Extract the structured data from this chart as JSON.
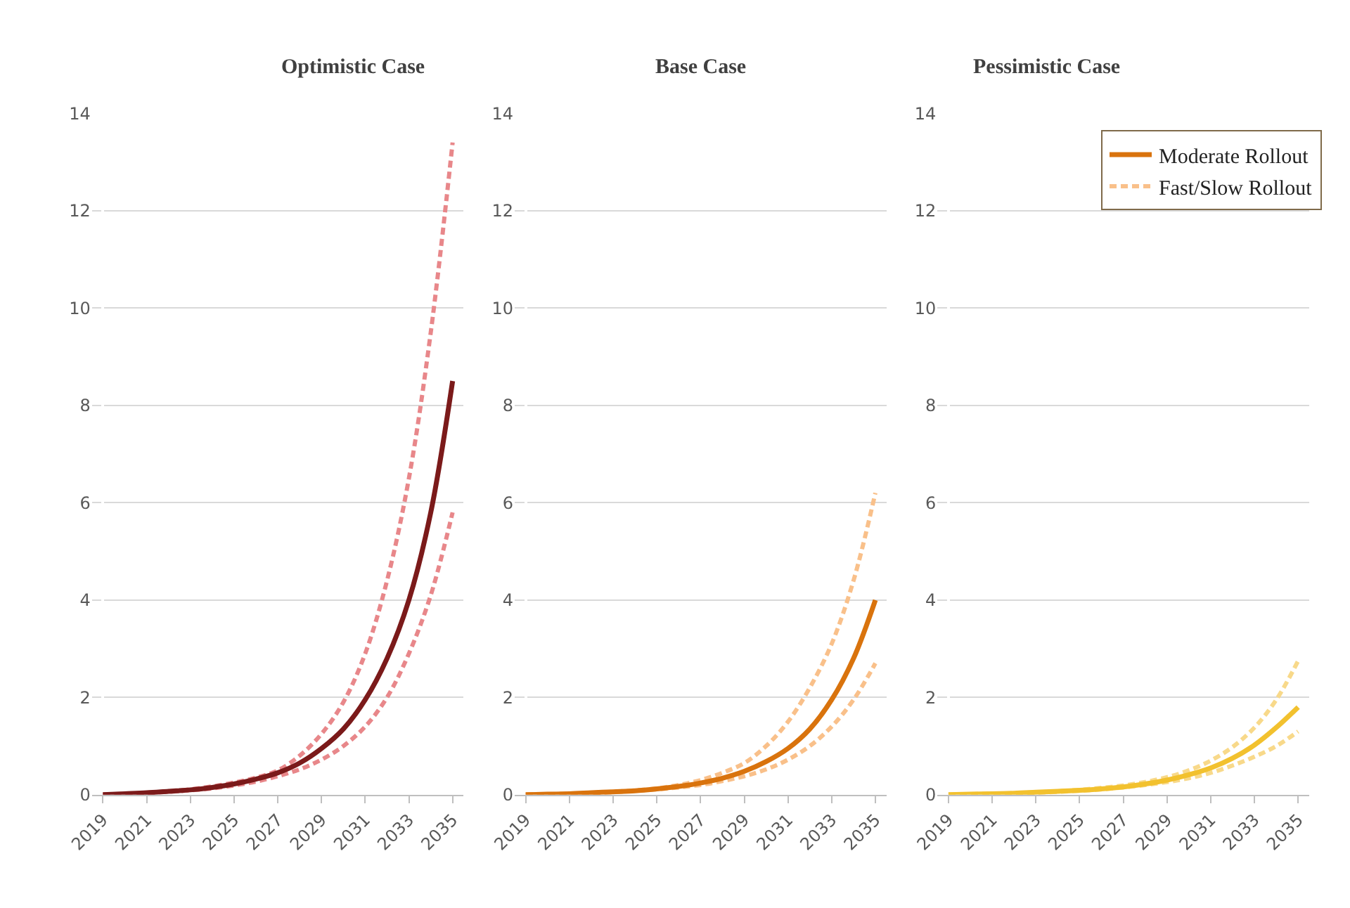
{
  "chart_data": [
    {
      "type": "line",
      "title": "Optimistic Case",
      "categories": [
        "2019",
        null,
        "2021",
        null,
        "2023",
        null,
        "2025",
        null,
        "2027",
        null,
        "2029",
        null,
        "2031",
        null,
        "2033",
        null,
        "2035"
      ],
      "ylim": [
        0,
        14
      ],
      "yticks": [
        0,
        2,
        4,
        6,
        8,
        10,
        12,
        14
      ],
      "grid": "y",
      "legend": false,
      "series": [
        {
          "color": "#e8878a",
          "line_style": "dashed",
          "values": [
            0,
            0.02,
            0.04,
            0.07,
            0.11,
            0.17,
            0.25,
            0.35,
            0.5,
            0.8,
            1.25,
            1.9,
            2.9,
            4.4,
            6.5,
            9.5,
            13.4
          ]
        },
        {
          "color": "#e8878a",
          "line_style": "dashed",
          "values": [
            0,
            0.01,
            0.03,
            0.06,
            0.09,
            0.13,
            0.19,
            0.27,
            0.38,
            0.52,
            0.72,
            1.0,
            1.4,
            2.0,
            2.9,
            4.1,
            5.8
          ]
        },
        {
          "color": "#7b1a1a",
          "line_style": "solid",
          "values": [
            0,
            0.02,
            0.04,
            0.07,
            0.1,
            0.15,
            0.22,
            0.32,
            0.45,
            0.65,
            0.95,
            1.35,
            1.95,
            2.8,
            4.0,
            5.8,
            8.5
          ]
        }
      ]
    },
    {
      "type": "line",
      "title": "Base Case",
      "categories": [
        "2019",
        null,
        "2021",
        null,
        "2023",
        null,
        "2025",
        null,
        "2027",
        null,
        "2029",
        null,
        "2031",
        null,
        "2033",
        null,
        "2035"
      ],
      "ylim": [
        0,
        14
      ],
      "yticks": [
        0,
        2,
        4,
        6,
        8,
        10,
        12,
        14
      ],
      "grid": "y",
      "legend": "right",
      "series": [
        {
          "name": "Fast/Slow Rollout",
          "color": "#f9c08a",
          "line_style": "dashed",
          "values": [
            0,
            0.01,
            0.02,
            0.04,
            0.06,
            0.09,
            0.13,
            0.2,
            0.3,
            0.45,
            0.65,
            1.0,
            1.5,
            2.2,
            3.1,
            4.4,
            6.2
          ]
        },
        {
          "color": "#f9c08a",
          "line_style": "dashed",
          "values": [
            0,
            0.01,
            0.02,
            0.03,
            0.05,
            0.08,
            0.11,
            0.15,
            0.2,
            0.28,
            0.38,
            0.52,
            0.72,
            1.0,
            1.4,
            1.95,
            2.7
          ]
        },
        {
          "name": "Moderate Rollout",
          "color": "#d9730d",
          "line_style": "solid",
          "values": [
            0,
            0.01,
            0.02,
            0.04,
            0.06,
            0.08,
            0.12,
            0.17,
            0.24,
            0.34,
            0.48,
            0.68,
            0.95,
            1.35,
            1.95,
            2.8,
            4.0
          ]
        }
      ]
    },
    {
      "type": "line",
      "title": "Pessimistic Case",
      "categories": [
        "2019",
        null,
        "2021",
        null,
        "2023",
        null,
        "2025",
        null,
        "2027",
        null,
        "2029",
        null,
        "2031",
        null,
        "2033",
        null,
        "2035"
      ],
      "ylim": [
        0,
        14
      ],
      "yticks": [
        0,
        2,
        4,
        6,
        8,
        10,
        12,
        14
      ],
      "grid": "y",
      "legend": false,
      "series": [
        {
          "color": "#f8d98a",
          "line_style": "dashed",
          "values": [
            0,
            0.01,
            0.02,
            0.03,
            0.05,
            0.07,
            0.1,
            0.14,
            0.19,
            0.26,
            0.36,
            0.5,
            0.7,
            0.98,
            1.38,
            1.95,
            2.75
          ]
        },
        {
          "color": "#f8d98a",
          "line_style": "dashed",
          "values": [
            0,
            0.01,
            0.02,
            0.03,
            0.04,
            0.06,
            0.08,
            0.11,
            0.15,
            0.2,
            0.26,
            0.34,
            0.45,
            0.6,
            0.78,
            1.0,
            1.3
          ]
        },
        {
          "color": "#f2c12e",
          "line_style": "solid",
          "values": [
            0,
            0.01,
            0.02,
            0.03,
            0.05,
            0.07,
            0.09,
            0.12,
            0.16,
            0.22,
            0.3,
            0.41,
            0.55,
            0.75,
            1.02,
            1.38,
            1.8
          ]
        }
      ]
    }
  ]
}
